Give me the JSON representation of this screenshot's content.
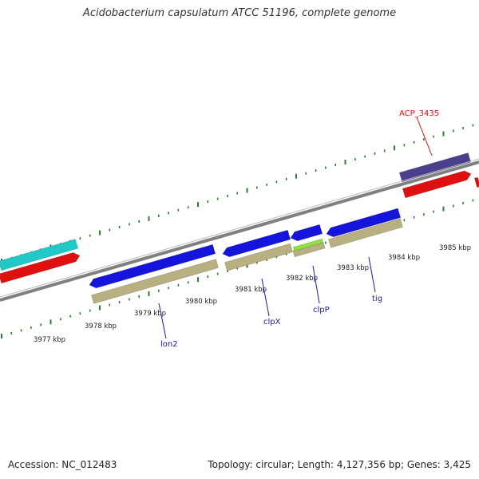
{
  "header": {
    "title": "Acidobacterium capsulatum ATCC 51196, complete genome"
  },
  "footer": {
    "accession_label": "Accession: NC_012483",
    "topology_label": "Topology: circular; Length: 4,127,356 bp; Genes: 3,425"
  },
  "colors": {
    "backbone": "#808080",
    "tick_color": "#2e7d32",
    "gene_blue": "#1414dc",
    "gene_cyan": "#20c8c8",
    "gene_red": "#e01010",
    "gene_purple": "#4a3f8c",
    "gene_khaki": "#b8b080",
    "gene_lime": "#90e040",
    "label_blue": "#1a1aa8",
    "label_red": "#dd1111"
  },
  "scale_labels": [
    "3977 kbp",
    "3978 kbp",
    "3979 kbp",
    "3980 kbp",
    "3981 kbp",
    "3982 kbp",
    "3983 kbp",
    "3984 kbp",
    "3985 kbp"
  ],
  "gene_labels": [
    {
      "name": "lon2",
      "color": "label_blue"
    },
    {
      "name": "clpX",
      "color": "label_blue"
    },
    {
      "name": "clpP",
      "color": "label_blue"
    },
    {
      "name": "tig",
      "color": "label_blue"
    },
    {
      "name": "ACP_3435",
      "color": "label_red"
    }
  ]
}
